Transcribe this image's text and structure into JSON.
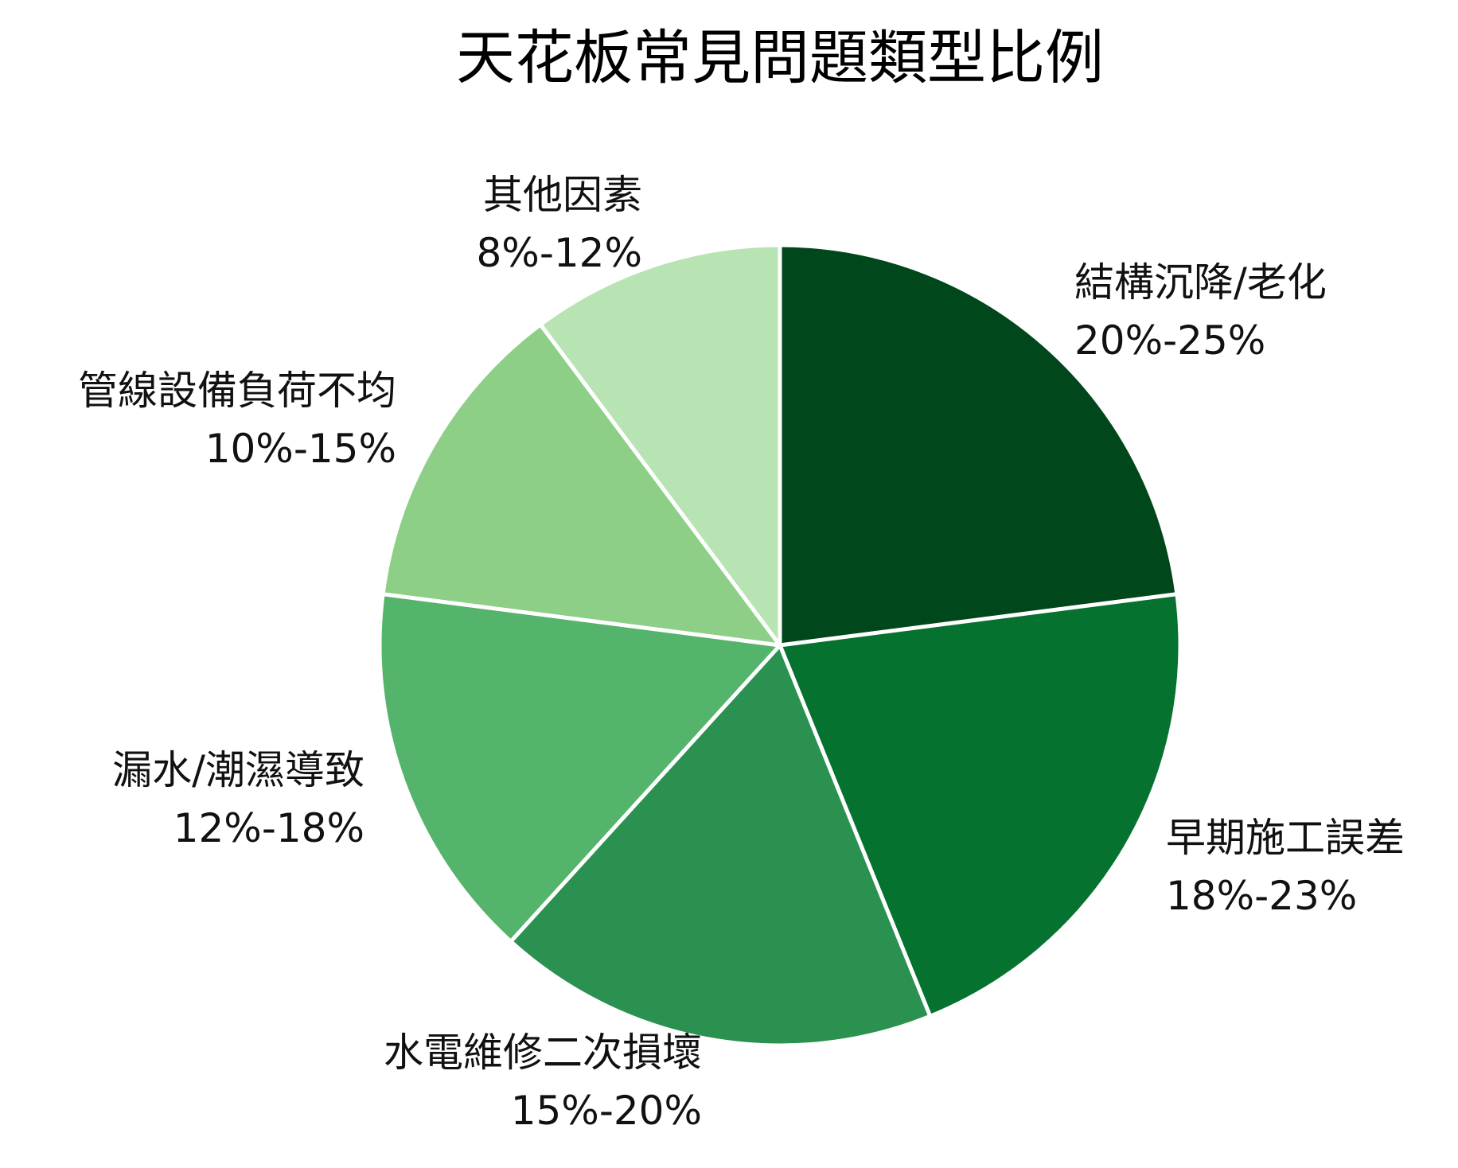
{
  "chart_data": {
    "type": "pie",
    "title": "天花板常見問題類型比例",
    "start": "top",
    "direction": "clockwise",
    "slices": [
      {
        "label": "結構沉降/老化",
        "range_text": "20%-25%",
        "value": 22.5,
        "color": "#00471b"
      },
      {
        "label": "早期施工誤差",
        "range_text": "18%-23%",
        "value": 20.5,
        "color": "#067230"
      },
      {
        "label": "水電維修二次損壞",
        "range_text": "15%-20%",
        "value": 17.5,
        "color": "#2b9150"
      },
      {
        "label": "漏水/潮濕導致",
        "range_text": "12%-18%",
        "value": 15,
        "color": "#55b46b"
      },
      {
        "label": "管線設備負荷不均",
        "range_text": "10%-15%",
        "value": 12.5,
        "color": "#8ecf88"
      },
      {
        "label": "其他因素",
        "range_text": "8%-12%",
        "value": 10,
        "color": "#b8e3b2"
      }
    ]
  }
}
